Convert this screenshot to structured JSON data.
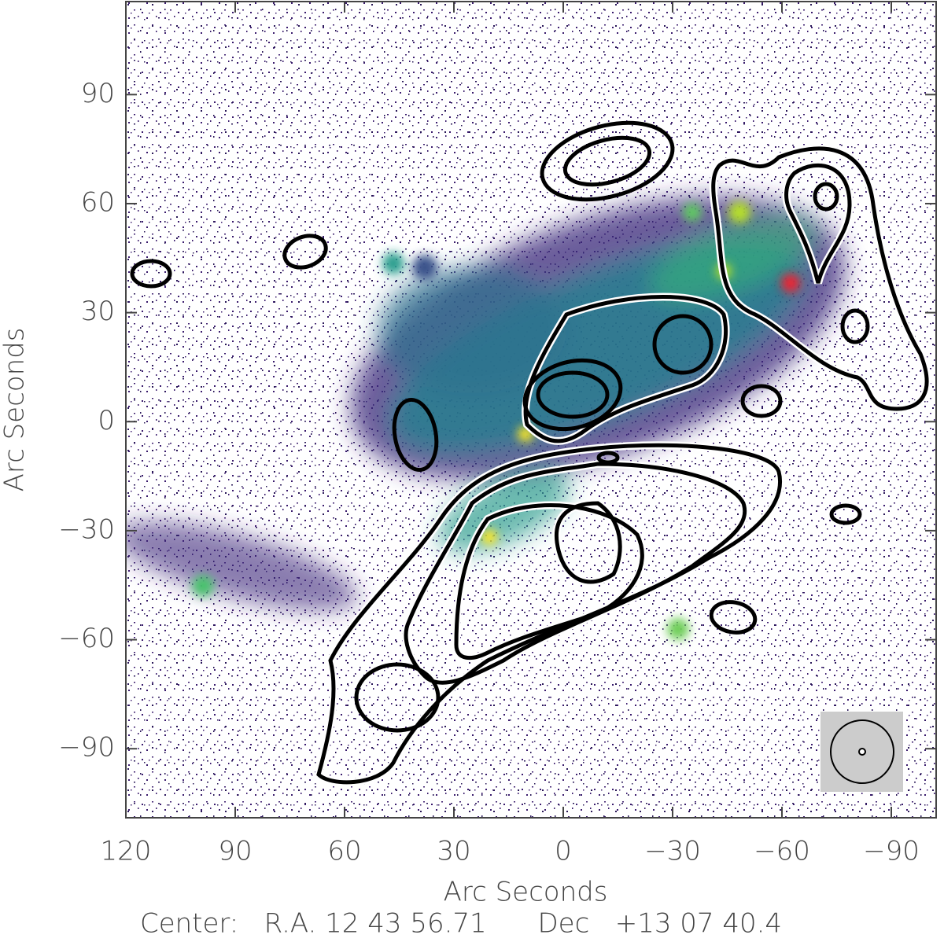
{
  "chart_data": {
    "type": "image",
    "xlabel": "Arc Seconds",
    "ylabel": "Arc Seconds",
    "footer": "Center:   R.A. 12 43 56.71      Dec   +13 07 40.4",
    "xlim": [
      120,
      -102.3
    ],
    "ylim": [
      -109,
      115.6
    ],
    "xticks": [
      120,
      90,
      60,
      30,
      0,
      {
        "value": -30,
        "label": "−30"
      },
      {
        "value": -60,
        "label": "−60"
      },
      {
        "value": -90,
        "label": "−90"
      }
    ],
    "yticks": [
      {
        "value": -90,
        "label": "−90"
      },
      {
        "value": -60,
        "label": "−60"
      },
      {
        "value": -30,
        "label": "−30"
      },
      0,
      30,
      60,
      90
    ]
  }
}
